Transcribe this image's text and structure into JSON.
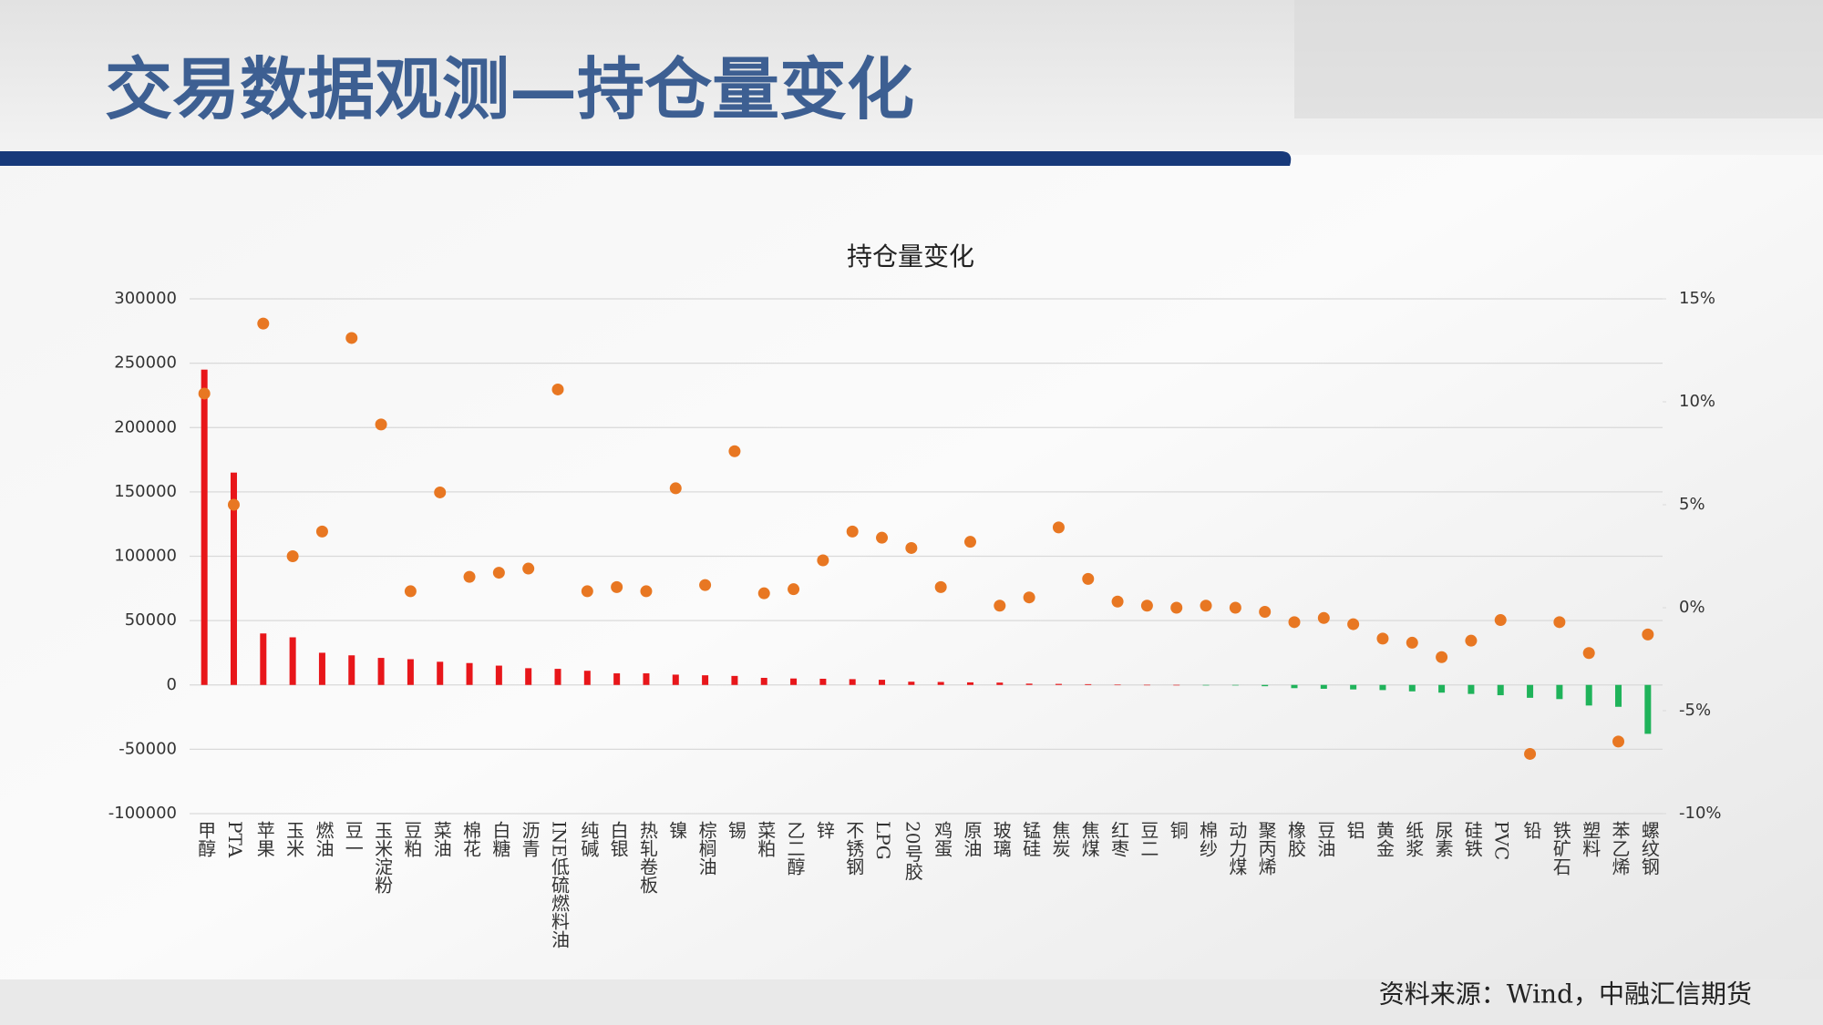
{
  "header": {
    "title": "交易数据观测—持仓量变化"
  },
  "footer": {
    "source": "资料来源：Wind，中融汇信期货"
  },
  "chart_data": {
    "type": "bar",
    "title": "持仓量变化",
    "categories": [
      "甲醇",
      "PTA",
      "苹果",
      "玉米",
      "燃油",
      "豆一",
      "玉米淀粉",
      "豆粕",
      "菜油",
      "棉花",
      "白糖",
      "沥青",
      "INE低硫燃料油",
      "纯碱",
      "白银",
      "热轧卷板",
      "镍",
      "棕榈油",
      "锡",
      "菜粕",
      "乙二醇",
      "锌",
      "不锈钢",
      "LPG",
      "20号胶",
      "鸡蛋",
      "原油",
      "玻璃",
      "锰硅",
      "焦炭",
      "焦煤",
      "红枣",
      "豆二",
      "铜",
      "棉纱",
      "动力煤",
      "聚丙烯",
      "橡胶",
      "豆油",
      "铝",
      "黄金",
      "纸浆",
      "尿素",
      "硅铁",
      "PVC",
      "铅",
      "铁矿石",
      "塑料",
      "苯乙烯",
      "螺纹钢"
    ],
    "series": [
      {
        "type": "bar",
        "color": "#e8161a",
        "negative_color": "#1fb35a",
        "values": [
          245000,
          165000,
          40000,
          37000,
          25000,
          23000,
          21000,
          20000,
          18000,
          17000,
          15000,
          13000,
          12500,
          11000,
          9000,
          9000,
          8000,
          7500,
          7000,
          5500,
          5000,
          4800,
          4500,
          4000,
          2500,
          2300,
          2000,
          1800,
          1000,
          800,
          600,
          200,
          100,
          50,
          -50,
          -200,
          -1000,
          -2500,
          -3000,
          -3500,
          -4000,
          -5000,
          -6000,
          -7000,
          -8000,
          -10000,
          -11000,
          -16000,
          -17000,
          -38000
        ]
      },
      {
        "type": "scatter",
        "axis": "y2",
        "color": "#e87722",
        "values": [
          10.4,
          5.0,
          13.8,
          2.5,
          3.7,
          13.1,
          8.9,
          0.8,
          5.6,
          1.5,
          1.7,
          1.9,
          10.6,
          0.8,
          1.0,
          0.8,
          5.8,
          1.1,
          7.6,
          0.7,
          0.9,
          2.3,
          3.7,
          3.4,
          2.9,
          1.0,
          3.2,
          0.1,
          0.5,
          3.9,
          1.4,
          0.3,
          0.1,
          0.0,
          0.1,
          0.0,
          -0.2,
          -0.7,
          -0.5,
          -0.8,
          -1.5,
          -1.7,
          -2.4,
          -1.6,
          -0.6,
          -7.1,
          -0.7,
          -2.2,
          -6.5,
          -1.3
        ]
      }
    ],
    "ylim": [
      -100000,
      300000
    ],
    "yticks": [
      -100000,
      -50000,
      0,
      50000,
      100000,
      150000,
      200000,
      250000,
      300000
    ],
    "y2lim": [
      -10,
      15
    ],
    "y2ticks": [
      {
        "value": -10,
        "label": "-10%"
      },
      {
        "value": -5,
        "label": "-5%"
      },
      {
        "value": 0,
        "label": "0%"
      },
      {
        "value": 5,
        "label": "5%"
      },
      {
        "value": 10,
        "label": "10%"
      },
      {
        "value": 15,
        "label": "15%"
      }
    ],
    "grid": true
  }
}
